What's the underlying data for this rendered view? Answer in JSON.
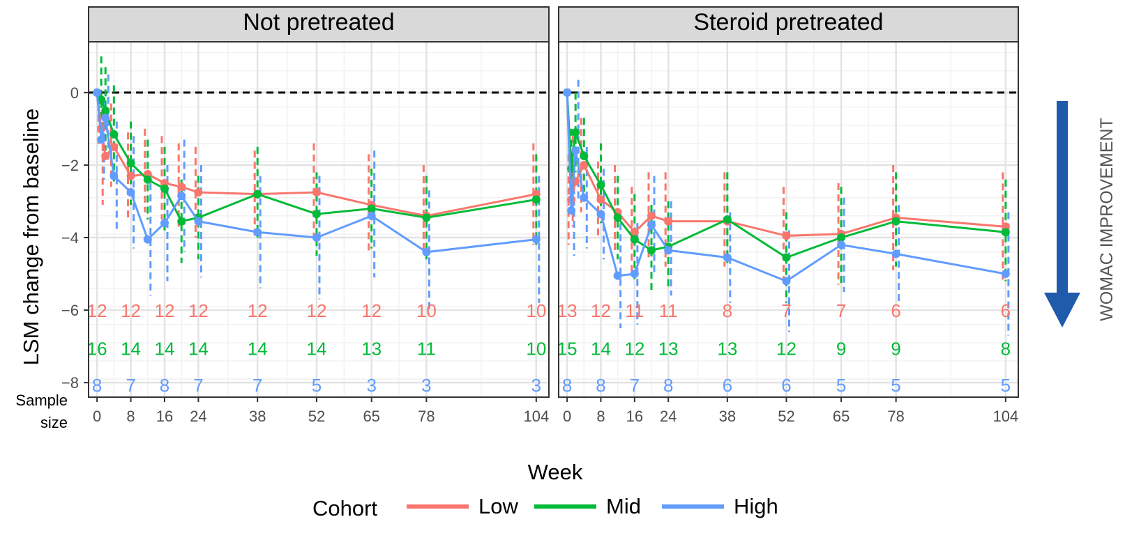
{
  "figure": {
    "ylabel": "LSM change from baseline",
    "xlabel": "Week",
    "sample_size_label": [
      "Sample",
      "size"
    ],
    "side_label": "WOMAC IMPROVEMENT",
    "legend_title": "Cohort",
    "colors": {
      "Low": "#F8766D",
      "Mid": "#00BA38",
      "High": "#619CFF",
      "arrow": "#1F5AAB",
      "strip": "#D9D9D9"
    }
  },
  "chart_data": [
    {
      "type": "line",
      "title": "Not pretreated",
      "xlabel": "Week",
      "ylabel": "LSM change from baseline",
      "xlim": [
        -2,
        107
      ],
      "ylim": [
        -8.4,
        1.4
      ],
      "x_ticks": [
        0,
        8,
        16,
        24,
        38,
        52,
        65,
        78,
        104
      ],
      "y_ticks": [
        0,
        -2,
        -4,
        -6,
        -8
      ],
      "reference_line": 0,
      "grid": true,
      "legend": "bottom",
      "series": [
        {
          "name": "Low",
          "x": [
            0,
            1,
            2,
            4,
            8,
            12,
            16,
            20,
            24,
            38,
            52,
            65,
            78,
            104
          ],
          "y": [
            0,
            -1.0,
            -1.75,
            -1.5,
            -2.3,
            -2.25,
            -2.5,
            -2.6,
            -2.75,
            -2.8,
            -2.75,
            -3.1,
            -3.4,
            -2.8
          ],
          "lower": [
            0,
            -1.5,
            -3.1,
            -2.6,
            -3.5,
            -3.3,
            -3.5,
            -3.7,
            -4.0,
            -4.0,
            -4.1,
            -4.4,
            -4.4,
            -4.2
          ],
          "upper": [
            0,
            -0.3,
            -0.5,
            -0.3,
            -1.1,
            -1.0,
            -1.2,
            -1.4,
            -1.5,
            -1.6,
            -1.4,
            -1.7,
            -2.0,
            -1.4
          ]
        },
        {
          "name": "Mid",
          "x": [
            0,
            1,
            2,
            4,
            8,
            12,
            16,
            20,
            24,
            38,
            52,
            65,
            78,
            104
          ],
          "y": [
            0,
            -0.2,
            -0.5,
            -1.15,
            -1.95,
            -2.4,
            -2.65,
            -3.55,
            -3.45,
            -2.8,
            -3.35,
            -3.2,
            -3.45,
            -2.95
          ],
          "lower": [
            0,
            -0.9,
            -1.6,
            -2.5,
            -3.1,
            -3.5,
            -3.8,
            -4.7,
            -4.6,
            -4.0,
            -4.5,
            -4.3,
            -4.6,
            -4.2
          ],
          "upper": [
            0,
            1.0,
            0.7,
            0.2,
            -0.8,
            -1.3,
            -1.5,
            -2.4,
            -2.3,
            -1.5,
            -2.2,
            -2.1,
            -2.3,
            -1.7
          ]
        },
        {
          "name": "High",
          "x": [
            0,
            1,
            2,
            4,
            8,
            12,
            16,
            20,
            24,
            38,
            52,
            65,
            78,
            104
          ],
          "y": [
            0,
            -1.3,
            -0.7,
            -2.3,
            -2.75,
            -4.05,
            -3.6,
            -2.85,
            -3.55,
            -3.85,
            -4.0,
            -3.4,
            -4.4,
            -4.05
          ],
          "lower": [
            0,
            -2.4,
            -1.9,
            -3.8,
            -4.3,
            -5.6,
            -5.2,
            -4.4,
            -5.1,
            -5.4,
            -5.7,
            -5.1,
            -6.1,
            -5.8
          ],
          "upper": [
            0,
            -0.2,
            0.5,
            -0.8,
            -1.2,
            -2.5,
            -2.0,
            -1.3,
            -2.0,
            -2.3,
            -2.3,
            -1.6,
            -2.7,
            -2.3
          ]
        }
      ],
      "sample_size": {
        "x": [
          0,
          8,
          16,
          24,
          38,
          52,
          65,
          78,
          104
        ],
        "Low": [
          "12",
          "12",
          "12",
          "12",
          "12",
          "12",
          "12",
          "10",
          "10"
        ],
        "Mid": [
          "16",
          "14",
          "14",
          "14",
          "14",
          "14",
          "13",
          "11",
          "10"
        ],
        "High": [
          "8",
          "7",
          "8",
          "7",
          "7",
          "5",
          "3",
          "3",
          "3"
        ]
      }
    },
    {
      "type": "line",
      "title": "Steroid pretreated",
      "xlabel": "Week",
      "ylabel": "LSM change from baseline",
      "xlim": [
        -2,
        107
      ],
      "ylim": [
        -8.4,
        1.4
      ],
      "x_ticks": [
        0,
        8,
        16,
        24,
        38,
        52,
        65,
        78,
        104
      ],
      "y_ticks": [
        0,
        -2,
        -4,
        -6,
        -8
      ],
      "reference_line": 0,
      "grid": true,
      "legend": "bottom",
      "series": [
        {
          "name": "Low",
          "x": [
            0,
            1,
            2,
            4,
            8,
            12,
            16,
            20,
            24,
            38,
            52,
            65,
            78,
            104
          ],
          "y": [
            0,
            -2.95,
            -2.45,
            -2.0,
            -2.95,
            -3.3,
            -3.85,
            -3.4,
            -3.55,
            -3.55,
            -3.95,
            -3.9,
            -3.45,
            -3.7
          ],
          "lower": [
            0,
            -4.2,
            -3.7,
            -3.3,
            -4.0,
            -4.4,
            -5.0,
            -4.6,
            -4.8,
            -4.8,
            -5.3,
            -5.3,
            -4.9,
            -5.2
          ],
          "upper": [
            0,
            -1.7,
            -1.2,
            -0.7,
            -1.9,
            -2.0,
            -2.6,
            -2.2,
            -2.2,
            -2.2,
            -2.6,
            -2.5,
            -2.0,
            -2.2
          ]
        },
        {
          "name": "Mid",
          "x": [
            0,
            1,
            2,
            4,
            8,
            12,
            16,
            20,
            24,
            38,
            52,
            65,
            78,
            104
          ],
          "y": [
            0,
            -2.1,
            -1.1,
            -1.75,
            -2.55,
            -3.45,
            -4.05,
            -4.35,
            -4.25,
            -3.5,
            -4.55,
            -4.0,
            -3.55,
            -3.85
          ],
          "lower": [
            0,
            -3.2,
            -2.2,
            -2.8,
            -3.6,
            -4.6,
            -5.2,
            -5.5,
            -5.4,
            -4.7,
            -5.8,
            -5.3,
            -4.8,
            -5.2
          ],
          "upper": [
            0,
            -1.0,
            0.0,
            -0.7,
            -1.4,
            -2.3,
            -2.8,
            -3.1,
            -3.0,
            -2.2,
            -3.3,
            -2.6,
            -2.2,
            -2.4
          ]
        },
        {
          "name": "High",
          "x": [
            0,
            1,
            2,
            4,
            8,
            12,
            16,
            20,
            24,
            38,
            52,
            65,
            78,
            104
          ],
          "y": [
            0,
            -3.25,
            -1.6,
            -2.9,
            -3.35,
            -5.05,
            -5.0,
            -3.65,
            -4.35,
            -4.55,
            -5.2,
            -4.2,
            -4.45,
            -5.0
          ],
          "lower": [
            0,
            -4.5,
            -3.0,
            -4.3,
            -4.6,
            -6.5,
            -6.4,
            -5.0,
            -5.6,
            -5.8,
            -6.6,
            -5.5,
            -5.8,
            -6.7
          ],
          "upper": [
            0,
            -2.0,
            0.35,
            -1.5,
            -2.1,
            -3.6,
            -3.6,
            -2.3,
            -3.0,
            -3.3,
            -3.8,
            -2.9,
            -3.1,
            -3.3
          ]
        }
      ],
      "sample_size": {
        "x": [
          0,
          8,
          16,
          24,
          38,
          52,
          65,
          78,
          104
        ],
        "Low": [
          "13",
          "12",
          "11",
          "11",
          "8",
          "7",
          "7",
          "6",
          "6"
        ],
        "Mid": [
          "15",
          "14",
          "12",
          "13",
          "13",
          "12",
          "9",
          "9",
          "8"
        ],
        "High": [
          "8",
          "8",
          "7",
          "8",
          "6",
          "6",
          "5",
          "5",
          "5"
        ]
      }
    }
  ]
}
